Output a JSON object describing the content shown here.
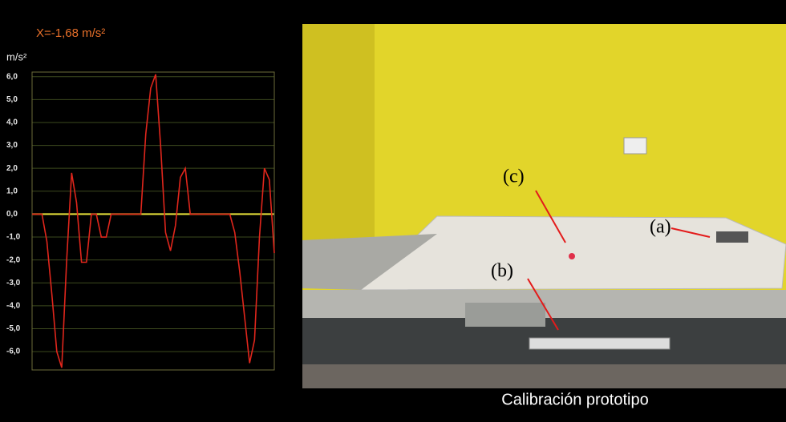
{
  "chart_data": {
    "type": "line",
    "title": "X=-1,68 m/s²",
    "y_label": "m/s²",
    "categories": [
      null,
      null,
      null,
      null,
      null,
      null,
      null,
      null,
      null,
      null,
      null,
      null,
      null,
      null,
      null,
      null,
      null,
      null,
      null,
      null,
      null,
      null,
      null,
      null,
      null,
      null,
      null,
      null,
      null,
      null,
      null,
      null,
      null,
      null,
      null,
      null,
      null,
      null,
      null,
      null,
      null,
      null,
      null,
      null,
      null,
      null,
      null,
      null,
      null,
      null
    ],
    "series": [
      {
        "name": null,
        "color": "#e0261c",
        "values": [
          0,
          0,
          0,
          -1.2,
          -3.5,
          -6,
          -6.7,
          -2,
          1.8,
          0.5,
          -2.1,
          -2.1,
          0,
          0,
          -1,
          -1,
          0,
          0,
          0,
          0,
          0,
          0,
          0,
          3.5,
          5.5,
          6.1,
          3,
          -0.8,
          -1.6,
          -0.5,
          1.6,
          2,
          0,
          0,
          0,
          0,
          0,
          0,
          0,
          0,
          0,
          -0.8,
          -2.5,
          -4.5,
          -6.5,
          -5.5,
          -1,
          2,
          1.5,
          -1.7
        ]
      }
    ],
    "ylim": [
      -6.8,
      6.2
    ],
    "yticks": [
      {
        "value": 6,
        "label": "6,0"
      },
      {
        "value": 5,
        "label": "5,0"
      },
      {
        "value": 4,
        "label": "4,0"
      },
      {
        "value": 3,
        "label": "3,0"
      },
      {
        "value": 2,
        "label": "2,0"
      },
      {
        "value": 1,
        "label": "1,0"
      },
      {
        "value": 0,
        "label": "0,0"
      },
      {
        "value": -1,
        "label": "-1,0"
      },
      {
        "value": -2,
        "label": "-2,0"
      },
      {
        "value": -3,
        "label": "-3,0"
      },
      {
        "value": -4,
        "label": "-4,0"
      },
      {
        "value": -5,
        "label": "-5,0"
      },
      {
        "value": -6,
        "label": "-6,0"
      }
    ],
    "grid": true,
    "grid_color": "#3d4a1e",
    "zero_line_color": "#e8e33a"
  },
  "photo": {
    "labels": [
      "(a)",
      "(b)",
      "(c)"
    ],
    "caption": "Calibración prototipo"
  }
}
